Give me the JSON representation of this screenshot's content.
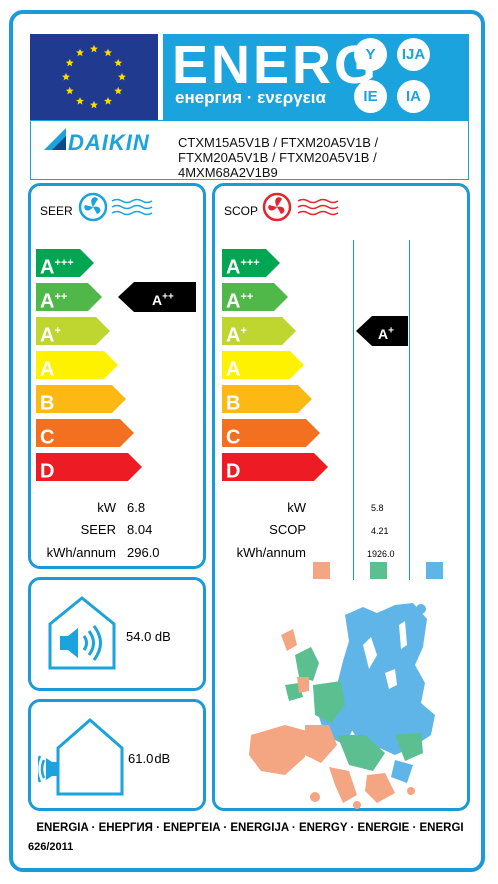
{
  "header": {
    "title": "ENERG",
    "subtitle": "енергия · ενεργεια",
    "lang_suffixes": [
      "Y",
      "IJA",
      "IE",
      "IA"
    ]
  },
  "brand": {
    "name": "DAIKIN"
  },
  "models": [
    "CTXM15A5V1B / FTXM20A5V1B /",
    "FTXM20A5V1B / FTXM20A5V1B /",
    "4MXM68A2V1B9"
  ],
  "cooling": {
    "label": "SEER",
    "classes": [
      {
        "base": "A",
        "sup": "+++",
        "color": "#00a651"
      },
      {
        "base": "A",
        "sup": "++",
        "color": "#50b848"
      },
      {
        "base": "A",
        "sup": "+",
        "color": "#bed62f"
      },
      {
        "base": "A",
        "sup": "",
        "color": "#fff200"
      },
      {
        "base": "B",
        "sup": "",
        "color": "#fdb913"
      },
      {
        "base": "C",
        "sup": "",
        "color": "#f37021"
      },
      {
        "base": "D",
        "sup": "",
        "color": "#ed1c24"
      }
    ],
    "rating": {
      "base": "A",
      "sup": "++"
    },
    "rows": [
      {
        "label": "kW",
        "value": "6.8"
      },
      {
        "label": "SEER",
        "value": "8.04"
      },
      {
        "label": "kWh/annum",
        "value": "296.0"
      }
    ]
  },
  "heating": {
    "label": "SCOP",
    "classes": [
      {
        "base": "A",
        "sup": "+++",
        "color": "#00a651"
      },
      {
        "base": "A",
        "sup": "++",
        "color": "#50b848"
      },
      {
        "base": "A",
        "sup": "+",
        "color": "#bed62f"
      },
      {
        "base": "A",
        "sup": "",
        "color": "#fff200"
      },
      {
        "base": "B",
        "sup": "",
        "color": "#fdb913"
      },
      {
        "base": "C",
        "sup": "",
        "color": "#f37021"
      },
      {
        "base": "D",
        "sup": "",
        "color": "#ed1c24"
      }
    ],
    "rating": {
      "base": "A",
      "sup": "+"
    },
    "rows": [
      {
        "label": "kW",
        "value": "5.8"
      },
      {
        "label": "SCOP",
        "value": "4.21"
      },
      {
        "label": "kWh/annum",
        "value": "1926.0"
      }
    ],
    "zone_colors": [
      "#f4a582",
      "#5bbf8f",
      "#5fb5e8"
    ]
  },
  "noise": {
    "indoor": "54.0 dB",
    "outdoor_value": "61.0",
    "outdoor_unit": "dB"
  },
  "footer": {
    "languages": "ENERGIA · ЕНЕРГИЯ · ENEPΓEIA · ENERGIJA · ENERGY · ENERGIE · ENERGI",
    "regulation": "626/2011"
  },
  "colors": {
    "frame": "#1a9ad6",
    "energy_blue": "#1aa3dc",
    "eu_blue": "#1f3a8f",
    "eu_star": "#ffdd00"
  }
}
